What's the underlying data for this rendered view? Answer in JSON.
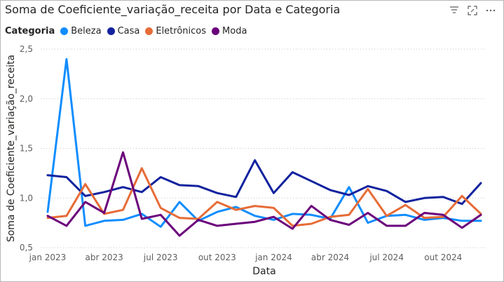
{
  "title": "Soma de Coeficiente_variação_receita por Data e Categoria",
  "toolbar": {
    "icons": [
      "filter-icon",
      "focus-mode-icon",
      "more-options-icon"
    ]
  },
  "legend": {
    "title": "Categoria"
  },
  "chart_data": {
    "type": "line",
    "title": "Soma de Coeficiente_variação_receita por Data e Categoria",
    "xlabel": "Data",
    "ylabel": "Soma de Coeficiente_variação_receita",
    "ylim": [
      0.5,
      2.5
    ],
    "yticks": [
      "0,5",
      "1,0",
      "1,5",
      "2,0",
      "2,5"
    ],
    "yticks_values": [
      0.5,
      1.0,
      1.5,
      2.0,
      2.5
    ],
    "x": [
      "2023-01",
      "2023-02",
      "2023-03",
      "2023-04",
      "2023-05",
      "2023-06",
      "2023-07",
      "2023-08",
      "2023-09",
      "2023-10",
      "2023-11",
      "2023-12",
      "2024-01",
      "2024-02",
      "2024-03",
      "2024-04",
      "2024-05",
      "2024-06",
      "2024-07",
      "2024-08",
      "2024-09",
      "2024-10",
      "2024-11",
      "2024-12"
    ],
    "xticks": [
      {
        "label": "jan 2023",
        "at": "2023-01"
      },
      {
        "label": "abr 2023",
        "at": "2023-04"
      },
      {
        "label": "jul 2023",
        "at": "2023-07"
      },
      {
        "label": "out 2023",
        "at": "2023-10"
      },
      {
        "label": "jan 2024",
        "at": "2024-01"
      },
      {
        "label": "abr 2024",
        "at": "2024-04"
      },
      {
        "label": "jul 2024",
        "at": "2024-07"
      },
      {
        "label": "out 2024",
        "at": "2024-10"
      }
    ],
    "grid": "horizontal dotted",
    "legend_position": "top-left",
    "series": [
      {
        "name": "Beleza",
        "color": "#118DFF",
        "values": [
          0.86,
          2.4,
          0.72,
          0.77,
          0.78,
          0.84,
          0.71,
          0.96,
          0.77,
          0.86,
          0.91,
          0.82,
          0.78,
          0.84,
          0.83,
          0.79,
          1.11,
          0.75,
          0.82,
          0.83,
          0.78,
          0.8,
          0.77,
          0.77
        ]
      },
      {
        "name": "Casa",
        "color": "#12239E",
        "values": [
          1.23,
          1.21,
          1.02,
          1.06,
          1.11,
          1.06,
          1.21,
          1.13,
          1.12,
          1.05,
          1.01,
          1.38,
          1.05,
          1.26,
          1.17,
          1.08,
          1.03,
          1.12,
          1.07,
          0.96,
          1.0,
          1.01,
          0.94,
          1.15
        ]
      },
      {
        "name": "Eletrônicos",
        "color": "#E66C37",
        "values": [
          0.8,
          0.82,
          1.14,
          0.84,
          0.88,
          1.3,
          0.9,
          0.8,
          0.79,
          0.96,
          0.88,
          0.92,
          0.9,
          0.72,
          0.74,
          0.81,
          0.83,
          1.09,
          0.82,
          0.93,
          0.8,
          0.81,
          1.02,
          0.84
        ]
      },
      {
        "name": "Moda",
        "color": "#6B007B",
        "values": [
          0.82,
          0.72,
          0.96,
          0.85,
          1.46,
          0.79,
          0.83,
          0.62,
          0.78,
          0.72,
          0.74,
          0.76,
          0.81,
          0.69,
          0.92,
          0.78,
          0.73,
          0.85,
          0.72,
          0.72,
          0.85,
          0.83,
          0.7,
          0.83
        ]
      }
    ]
  }
}
